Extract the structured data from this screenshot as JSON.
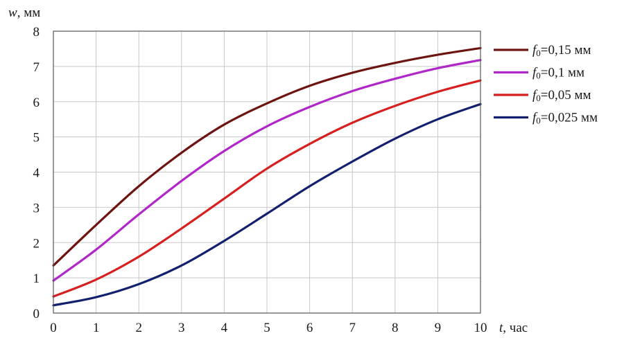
{
  "chart_data": {
    "type": "line",
    "title": "",
    "xlabel": {
      "var": "t",
      "unit": ", час"
    },
    "ylabel": {
      "var": "w",
      "unit": ", мм"
    },
    "xlim": [
      0,
      10
    ],
    "ylim": [
      0,
      8
    ],
    "xticks": [
      "0",
      "1",
      "2",
      "3",
      "4",
      "5",
      "6",
      "7",
      "8",
      "9",
      "10"
    ],
    "yticks": [
      "0",
      "1",
      "2",
      "3",
      "4",
      "5",
      "6",
      "7",
      "8"
    ],
    "grid": true,
    "legend_position": "right",
    "x": [
      0,
      1,
      2,
      3,
      4,
      5,
      6,
      7,
      8,
      9,
      10
    ],
    "series": [
      {
        "name": "f0=0,15 мм",
        "label_var": "f",
        "label_sub": "0",
        "label_rest": "=0,15 мм",
        "color": "#6e1410",
        "values": [
          1.35,
          2.5,
          3.6,
          4.55,
          5.35,
          5.95,
          6.45,
          6.82,
          7.1,
          7.33,
          7.52
        ]
      },
      {
        "name": "f0=0,1 мм",
        "label_var": "f",
        "label_sub": "0",
        "label_rest": "=0,1 мм",
        "color": "#b026c8",
        "values": [
          0.92,
          1.8,
          2.8,
          3.75,
          4.6,
          5.3,
          5.85,
          6.3,
          6.65,
          6.95,
          7.18
        ]
      },
      {
        "name": "f0=0,05 мм",
        "label_var": "f",
        "label_sub": "0",
        "label_rest": "=0,05 мм",
        "color": "#d61f1f",
        "values": [
          0.47,
          0.95,
          1.6,
          2.4,
          3.25,
          4.1,
          4.8,
          5.4,
          5.88,
          6.28,
          6.6
        ]
      },
      {
        "name": "f0=0,025 мм",
        "label_var": "f",
        "label_sub": "0",
        "label_rest": "=0,025 мм",
        "color": "#12206e",
        "values": [
          0.22,
          0.45,
          0.82,
          1.35,
          2.05,
          2.82,
          3.6,
          4.3,
          4.95,
          5.5,
          5.93
        ]
      }
    ]
  }
}
